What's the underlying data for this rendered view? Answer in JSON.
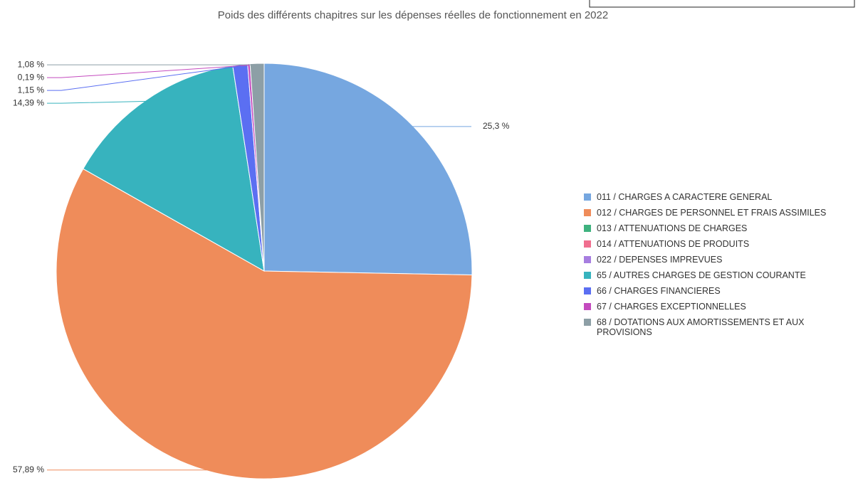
{
  "chart_data": {
    "type": "pie",
    "title": "Poids des différents chapitres sur les dépenses réelles de fonctionnement en 2022",
    "categories": [
      "011 / CHARGES A CARACTERE GENERAL",
      "012 / CHARGES DE PERSONNEL ET FRAIS ASSIMILES",
      "013 / ATTENUATIONS DE CHARGES",
      "014 / ATTENUATIONS DE PRODUITS",
      "022 / DEPENSES IMPREVUES",
      "65 / AUTRES CHARGES DE GESTION COURANTE",
      "66 / CHARGES FINANCIERES",
      "67 / CHARGES EXCEPTIONNELLES",
      "68 / DOTATIONS AUX AMORTISSEMENTS ET AUX PROVISIONS"
    ],
    "values": [
      25.3,
      57.89,
      0,
      0,
      0,
      14.39,
      1.15,
      0.19,
      1.08
    ],
    "value_labels": [
      "25,3 %",
      "57,89 %",
      null,
      null,
      null,
      "14,39 %",
      "1,15 %",
      "0,19 %",
      "1,08 %"
    ],
    "colors": [
      "#76a7e0",
      "#ef8c5a",
      "#3fb27f",
      "#f06f8f",
      "#a77ee0",
      "#37b3be",
      "#5b6ff2",
      "#c44bbf",
      "#8d9fa6"
    ]
  }
}
